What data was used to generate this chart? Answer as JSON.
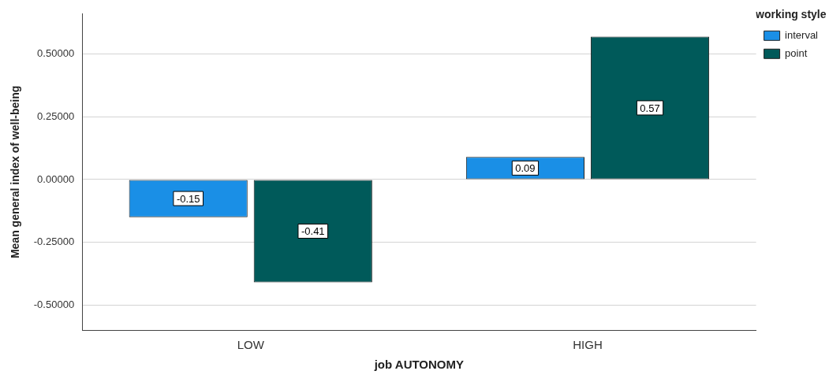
{
  "chart_data": {
    "type": "bar",
    "xlabel": "job AUTONOMY",
    "ylabel": "Mean general index of well-being",
    "legend_title": "working style",
    "categories": [
      "LOW",
      "HIGH"
    ],
    "series": [
      {
        "name": "interval",
        "color": "#1a8fe6",
        "values": [
          -0.15,
          0.09
        ]
      },
      {
        "name": "point",
        "color": "#005a5a",
        "values": [
          -0.41,
          0.57
        ]
      }
    ],
    "ylim": [
      -0.6,
      0.66
    ],
    "yticks": [
      {
        "value": -0.5,
        "label": "-0.50000"
      },
      {
        "value": -0.25,
        "label": "-0.25000"
      },
      {
        "value": 0,
        "label": "0.00000"
      },
      {
        "value": 0.25,
        "label": "0.25000"
      },
      {
        "value": 0.5,
        "label": "0.50000"
      }
    ],
    "grid": "y",
    "legend": "top right",
    "data_labels": true
  }
}
